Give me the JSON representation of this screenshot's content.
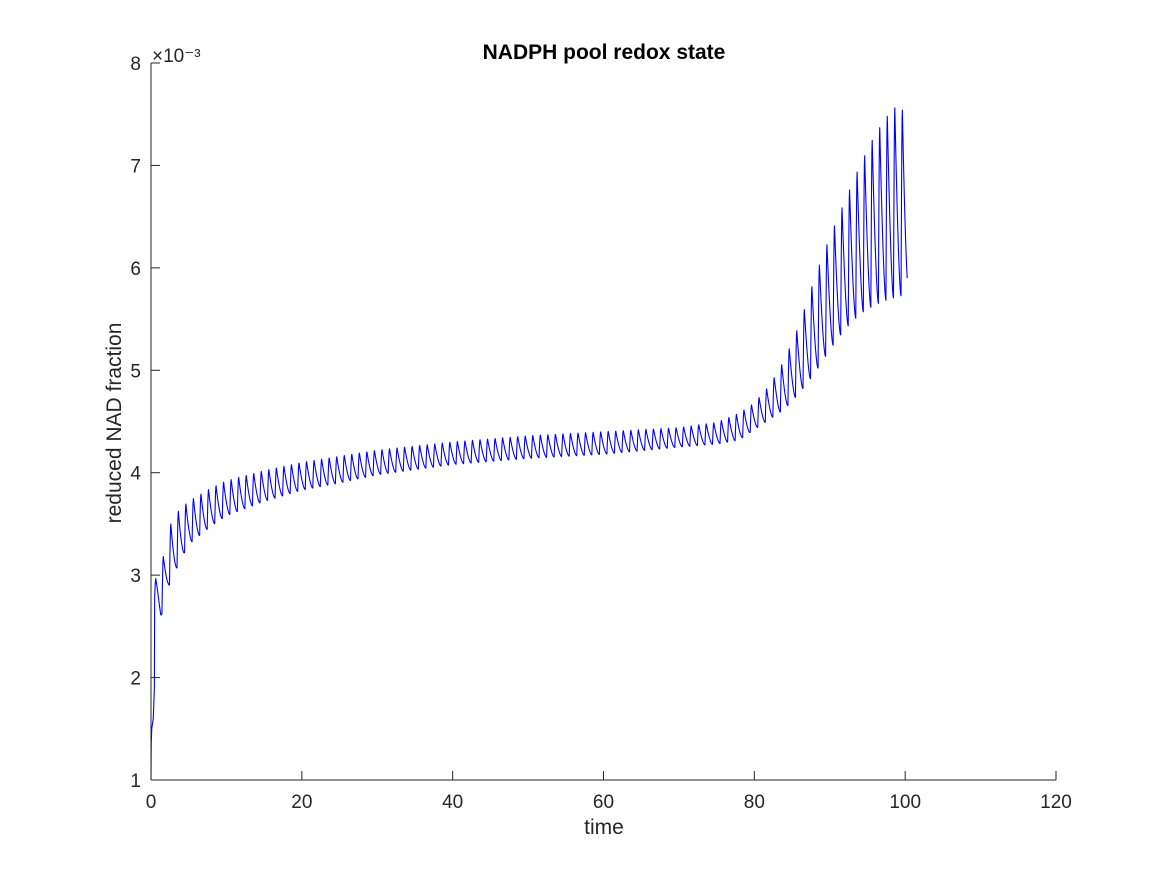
{
  "chart_data": {
    "type": "line",
    "title": "NADPH pool redox state",
    "xlabel": "time",
    "ylabel": "reduced NAD fraction",
    "xlim": [
      0,
      120
    ],
    "ylim": [
      0.001,
      0.008
    ],
    "y_exponent_label": "×10⁻³",
    "x_ticks": [
      0,
      20,
      40,
      60,
      80,
      100,
      120
    ],
    "x_tick_labels": [
      "0",
      "20",
      "40",
      "60",
      "80",
      "100",
      "120"
    ],
    "y_ticks": [
      0.001,
      0.002,
      0.003,
      0.004,
      0.005,
      0.006,
      0.007,
      0.008
    ],
    "y_tick_labels": [
      "1",
      "2",
      "3",
      "4",
      "5",
      "6",
      "7",
      "8"
    ],
    "grid": false,
    "legend": "none",
    "series": [
      {
        "color": "#0000ff",
        "oscillation_period": 1,
        "t_end": 100.3,
        "upper_envelope": {
          "t": [
            0.5,
            1.3,
            2.3,
            3.3,
            5,
            8,
            10,
            15,
            20,
            25,
            30,
            40,
            50,
            60,
            70,
            75,
            78,
            80,
            82,
            84,
            86,
            88,
            90,
            92,
            94,
            96,
            98,
            99.2,
            100.2
          ],
          "y": [
            0.00295,
            0.00305,
            0.00345,
            0.0036,
            0.00372,
            0.00385,
            0.00392,
            0.00402,
            0.0041,
            0.00416,
            0.00422,
            0.0043,
            0.00436,
            0.0044,
            0.00444,
            0.00449,
            0.00458,
            0.00468,
            0.00485,
            0.0051,
            0.00545,
            0.0059,
            0.0063,
            0.00665,
            0.007,
            0.0073,
            0.00752,
            0.0076,
            0.00746
          ]
        },
        "lower_envelope": {
          "t": [
            0.5,
            1.3,
            2.3,
            3.3,
            5,
            8,
            10,
            15,
            20,
            25,
            30,
            40,
            50,
            60,
            70,
            75,
            78,
            80,
            82,
            84,
            86,
            88,
            90,
            92,
            94,
            96,
            98,
            99.2,
            100.2
          ],
          "y": [
            0.0027,
            0.00258,
            0.00288,
            0.00305,
            0.0033,
            0.00348,
            0.00358,
            0.00372,
            0.00383,
            0.0039,
            0.00398,
            0.00408,
            0.00414,
            0.00418,
            0.00425,
            0.00428,
            0.00432,
            0.00442,
            0.00452,
            0.00462,
            0.00478,
            0.00497,
            0.0052,
            0.0054,
            0.00555,
            0.00564,
            0.0057,
            0.00572,
            0.00575
          ]
        },
        "initial_transient": {
          "t": [
            0,
            0.03,
            0.1,
            0.3,
            0.45
          ],
          "y": [
            0.001,
            0.00135,
            0.0015,
            0.0016,
            0.0019
          ]
        }
      }
    ]
  }
}
